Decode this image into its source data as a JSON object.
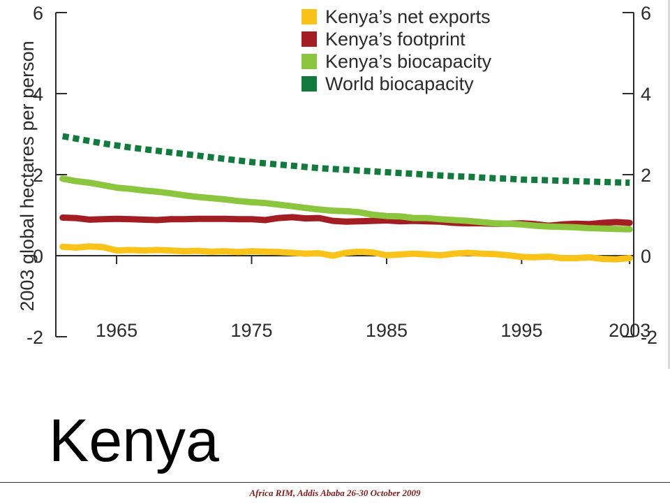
{
  "slide_title": "Kenya",
  "footer": "Africa RIM,  Addis Ababa 26-30 October 2009",
  "chart_data": {
    "type": "line",
    "title": "",
    "xlabel": "",
    "ylabel": "2003 global hectares per person",
    "ylim": [
      -2,
      6
    ],
    "xlim": [
      1961,
      2003
    ],
    "y_ticks": [
      -2,
      0,
      2,
      4,
      6
    ],
    "y_tick_labels": [
      "-2",
      "0",
      "2",
      "4",
      "6"
    ],
    "x_ticks": [
      1965,
      1975,
      1985,
      1995,
      2003
    ],
    "x_tick_labels": [
      "1965",
      "1975",
      "1985",
      "1995",
      "2003"
    ],
    "grid": false,
    "legend_position": "top-right",
    "series": [
      {
        "name": "Kenya’s net exports",
        "color": "#f9c31a",
        "x": [
          1961,
          1962,
          1963,
          1964,
          1965,
          1966,
          1967,
          1968,
          1969,
          1970,
          1971,
          1972,
          1973,
          1974,
          1975,
          1976,
          1977,
          1978,
          1979,
          1980,
          1981,
          1982,
          1983,
          1984,
          1985,
          1986,
          1987,
          1988,
          1989,
          1990,
          1991,
          1992,
          1993,
          1994,
          1995,
          1996,
          1997,
          1998,
          1999,
          2000,
          2001,
          2002,
          2003
        ],
        "y": [
          0.22,
          0.2,
          0.23,
          0.21,
          0.13,
          0.14,
          0.13,
          0.14,
          0.13,
          0.11,
          0.12,
          0.1,
          0.11,
          0.09,
          0.11,
          0.1,
          0.09,
          0.07,
          0.05,
          0.06,
          0.0,
          0.07,
          0.1,
          0.08,
          0.01,
          0.03,
          0.05,
          0.03,
          0.01,
          0.05,
          0.07,
          0.05,
          0.04,
          0.01,
          -0.03,
          -0.04,
          -0.02,
          -0.06,
          -0.06,
          -0.04,
          -0.08,
          -0.09,
          -0.06
        ]
      },
      {
        "name": "Kenya’s footprint",
        "color": "#a31e23",
        "x": [
          1961,
          1962,
          1963,
          1964,
          1965,
          1966,
          1967,
          1968,
          1969,
          1970,
          1971,
          1972,
          1973,
          1974,
          1975,
          1976,
          1977,
          1978,
          1979,
          1980,
          1981,
          1982,
          1983,
          1984,
          1985,
          1986,
          1987,
          1988,
          1989,
          1990,
          1991,
          1992,
          1993,
          1994,
          1995,
          1996,
          1997,
          1998,
          1999,
          2000,
          2001,
          2002,
          2003
        ],
        "y": [
          0.94,
          0.93,
          0.89,
          0.9,
          0.91,
          0.9,
          0.89,
          0.88,
          0.9,
          0.9,
          0.91,
          0.91,
          0.91,
          0.9,
          0.9,
          0.88,
          0.93,
          0.95,
          0.92,
          0.93,
          0.86,
          0.84,
          0.85,
          0.86,
          0.87,
          0.85,
          0.86,
          0.85,
          0.84,
          0.81,
          0.8,
          0.8,
          0.79,
          0.79,
          0.8,
          0.78,
          0.74,
          0.77,
          0.79,
          0.78,
          0.81,
          0.83,
          0.81
        ]
      },
      {
        "name": "Kenya’s biocapacity",
        "color": "#8cc63f",
        "x": [
          1961,
          1962,
          1963,
          1964,
          1965,
          1966,
          1967,
          1968,
          1969,
          1970,
          1971,
          1972,
          1973,
          1974,
          1975,
          1976,
          1977,
          1978,
          1979,
          1980,
          1981,
          1982,
          1983,
          1984,
          1985,
          1986,
          1987,
          1988,
          1989,
          1990,
          1991,
          1992,
          1993,
          1994,
          1995,
          1996,
          1997,
          1998,
          1999,
          2000,
          2001,
          2002,
          2003
        ],
        "y": [
          1.9,
          1.84,
          1.8,
          1.74,
          1.68,
          1.65,
          1.61,
          1.58,
          1.54,
          1.49,
          1.45,
          1.42,
          1.39,
          1.35,
          1.32,
          1.3,
          1.26,
          1.22,
          1.18,
          1.14,
          1.11,
          1.1,
          1.07,
          1.01,
          0.98,
          0.97,
          0.93,
          0.93,
          0.9,
          0.88,
          0.86,
          0.83,
          0.8,
          0.79,
          0.77,
          0.74,
          0.72,
          0.71,
          0.7,
          0.68,
          0.67,
          0.66,
          0.65
        ]
      },
      {
        "name": "World biocapacity",
        "color": "#117a3c",
        "x": [
          1961,
          1962,
          1963,
          1964,
          1965,
          1966,
          1967,
          1968,
          1969,
          1970,
          1971,
          1972,
          1973,
          1974,
          1975,
          1976,
          1977,
          1978,
          1979,
          1980,
          1981,
          1982,
          1983,
          1984,
          1985,
          1986,
          1987,
          1988,
          1989,
          1990,
          1991,
          1992,
          1993,
          1994,
          1995,
          1996,
          1997,
          1998,
          1999,
          2000,
          2001,
          2002,
          2003
        ],
        "y": [
          2.95,
          2.89,
          2.83,
          2.77,
          2.72,
          2.67,
          2.63,
          2.59,
          2.55,
          2.51,
          2.47,
          2.43,
          2.39,
          2.35,
          2.31,
          2.28,
          2.25,
          2.22,
          2.19,
          2.16,
          2.14,
          2.12,
          2.1,
          2.08,
          2.06,
          2.04,
          2.02,
          2.0,
          1.98,
          1.96,
          1.95,
          1.93,
          1.91,
          1.9,
          1.88,
          1.87,
          1.86,
          1.85,
          1.84,
          1.83,
          1.82,
          1.81,
          1.8
        ],
        "style": "dashed"
      }
    ]
  }
}
